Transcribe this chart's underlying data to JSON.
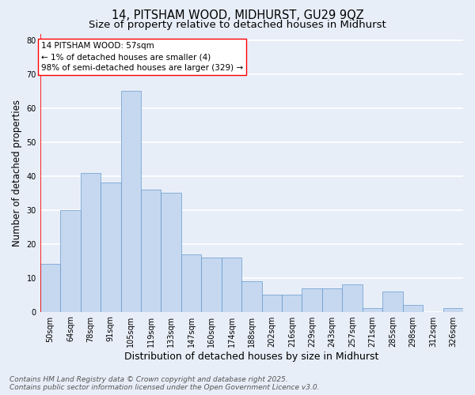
{
  "title_line1": "14, PITSHAM WOOD, MIDHURST, GU29 9QZ",
  "title_line2": "Size of property relative to detached houses in Midhurst",
  "xlabel": "Distribution of detached houses by size in Midhurst",
  "ylabel": "Number of detached properties",
  "categories": [
    "50sqm",
    "64sqm",
    "78sqm",
    "91sqm",
    "105sqm",
    "119sqm",
    "133sqm",
    "147sqm",
    "160sqm",
    "174sqm",
    "188sqm",
    "202sqm",
    "216sqm",
    "229sqm",
    "243sqm",
    "257sqm",
    "271sqm",
    "285sqm",
    "298sqm",
    "312sqm",
    "326sqm"
  ],
  "values": [
    14,
    30,
    41,
    38,
    65,
    36,
    35,
    17,
    16,
    16,
    9,
    5,
    5,
    7,
    7,
    8,
    1,
    6,
    2,
    0,
    1
  ],
  "bar_color": "#c5d8f0",
  "bar_edge_color": "#6699cc",
  "annotation_text_line1": "14 PITSHAM WOOD: 57sqm",
  "annotation_text_line2": "← 1% of detached houses are smaller (4)",
  "annotation_text_line3": "98% of semi-detached houses are larger (329) →",
  "ylim": [
    0,
    82
  ],
  "yticks": [
    0,
    10,
    20,
    30,
    40,
    50,
    60,
    70,
    80
  ],
  "background_color": "#e8eef8",
  "grid_color": "#ffffff",
  "footer_line1": "Contains HM Land Registry data © Crown copyright and database right 2025.",
  "footer_line2": "Contains public sector information licensed under the Open Government Licence v3.0.",
  "title_fontsize": 10.5,
  "subtitle_fontsize": 9.5,
  "ylabel_fontsize": 8.5,
  "xlabel_fontsize": 9,
  "tick_fontsize": 7,
  "annotation_fontsize": 7.5,
  "footer_fontsize": 6.5
}
